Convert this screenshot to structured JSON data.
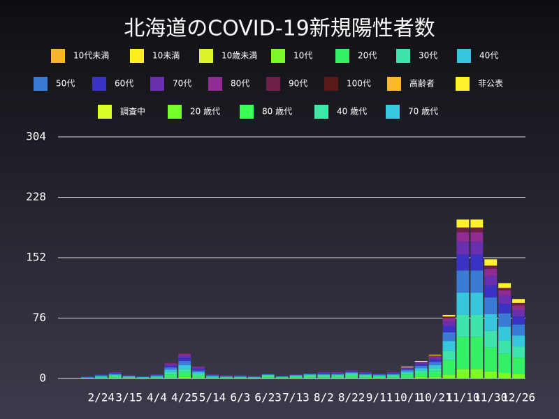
{
  "chart_data": {
    "type": "bar",
    "stacked": true,
    "title": "北海道のCOVID-19新規陽性者数",
    "categories": [
      null,
      null,
      "2/24",
      null,
      "3/15",
      null,
      "4/4",
      null,
      "4/25",
      null,
      "5/14",
      null,
      "6/3",
      null,
      "6/23",
      null,
      "7/13",
      null,
      "8/2",
      null,
      "8/22",
      null,
      "9/11",
      null,
      "10/1",
      null,
      "10/21",
      null,
      "11/10",
      null,
      "11/30",
      null,
      "12/26"
    ],
    "ylim": [
      0,
      304
    ],
    "yticks": [
      0,
      76,
      152,
      228,
      304
    ],
    "grid": true,
    "series": [
      {
        "name": "10代未満",
        "color": "#f9b52b",
        "values": [
          0,
          0,
          0,
          0,
          0,
          0,
          0,
          0,
          0,
          0,
          0,
          0,
          0,
          0,
          0,
          0,
          0,
          0,
          0,
          0,
          0,
          0,
          0,
          0,
          0,
          0,
          0,
          0,
          0,
          0,
          0,
          0,
          0
        ]
      },
      {
        "name": "10未満",
        "color": "#ffee22",
        "values": [
          0,
          0,
          0,
          0,
          0,
          0,
          0,
          0,
          0,
          0,
          0,
          0,
          0,
          0,
          0,
          0,
          0,
          0,
          0,
          0,
          0,
          0,
          0,
          0,
          0,
          0,
          0,
          0,
          0,
          0,
          0,
          0,
          0
        ]
      },
      {
        "name": "10歳未満",
        "color": "#dcf52a",
        "values": [
          0,
          0,
          0,
          0,
          0,
          0,
          0,
          0,
          0,
          0,
          0,
          0,
          0,
          0,
          0,
          0,
          0,
          0,
          0,
          0,
          0,
          0,
          0,
          0,
          0,
          0,
          0,
          0,
          0,
          0,
          0,
          0,
          0
        ]
      },
      {
        "name": "10代",
        "color": "#7cf92a",
        "values": [
          0,
          0,
          0,
          1,
          0,
          0,
          0,
          1,
          2,
          1,
          0,
          0,
          0,
          0,
          1,
          0,
          0,
          1,
          1,
          1,
          1,
          1,
          0,
          1,
          1,
          2,
          2,
          5,
          12,
          12,
          9,
          7,
          6
        ]
      },
      {
        "name": "20代",
        "color": "#35f065",
        "values": [
          0,
          1,
          1,
          2,
          1,
          1,
          1,
          4,
          6,
          3,
          1,
          1,
          1,
          1,
          2,
          1,
          2,
          2,
          2,
          2,
          3,
          2,
          2,
          2,
          4,
          5,
          7,
          18,
          40,
          40,
          30,
          24,
          20
        ]
      },
      {
        "name": "30代",
        "color": "#3de3a8",
        "values": [
          0,
          0,
          1,
          1,
          1,
          0,
          1,
          3,
          4,
          2,
          1,
          1,
          1,
          0,
          1,
          1,
          1,
          1,
          1,
          1,
          2,
          1,
          1,
          1,
          2,
          3,
          4,
          12,
          28,
          28,
          21,
          17,
          14
        ]
      },
      {
        "name": "40代",
        "color": "#37c7dc",
        "values": [
          0,
          0,
          1,
          1,
          1,
          1,
          1,
          3,
          5,
          2,
          1,
          0,
          0,
          1,
          1,
          0,
          1,
          1,
          1,
          1,
          1,
          1,
          1,
          1,
          2,
          3,
          4,
          12,
          28,
          28,
          21,
          17,
          14
        ]
      },
      {
        "name": "50代",
        "color": "#3a7bd6",
        "values": [
          0,
          1,
          1,
          1,
          0,
          0,
          1,
          3,
          5,
          2,
          1,
          1,
          1,
          0,
          0,
          1,
          0,
          1,
          1,
          1,
          1,
          1,
          1,
          1,
          2,
          3,
          4,
          11,
          28,
          28,
          21,
          17,
          14
        ]
      },
      {
        "name": "60代",
        "color": "#3a32c2",
        "values": [
          0,
          0,
          1,
          1,
          0,
          1,
          0,
          2,
          4,
          2,
          0,
          0,
          0,
          0,
          1,
          0,
          0,
          0,
          1,
          1,
          1,
          1,
          0,
          1,
          1,
          2,
          3,
          8,
          20,
          20,
          15,
          12,
          10
        ]
      },
      {
        "name": "70代",
        "color": "#6a2fae",
        "values": [
          0,
          0,
          0,
          1,
          1,
          0,
          1,
          2,
          3,
          2,
          1,
          0,
          1,
          1,
          0,
          0,
          1,
          0,
          1,
          0,
          1,
          1,
          1,
          1,
          1,
          2,
          2,
          6,
          16,
          16,
          12,
          10,
          8
        ]
      },
      {
        "name": "80代",
        "color": "#8e2c94",
        "values": [
          0,
          0,
          0,
          0,
          0,
          0,
          0,
          1,
          2,
          1,
          0,
          1,
          0,
          0,
          0,
          0,
          0,
          0,
          0,
          1,
          0,
          0,
          0,
          0,
          1,
          1,
          2,
          4,
          12,
          12,
          9,
          7,
          6
        ]
      },
      {
        "name": "90代",
        "color": "#6e1f48",
        "values": [
          0,
          0,
          0,
          0,
          0,
          0,
          0,
          1,
          1,
          0,
          0,
          0,
          0,
          0,
          0,
          0,
          0,
          0,
          0,
          0,
          0,
          0,
          0,
          0,
          0,
          0,
          1,
          2,
          6,
          6,
          4,
          3,
          3
        ]
      },
      {
        "name": "100代",
        "color": "#5a1a1a",
        "values": [
          0,
          0,
          0,
          0,
          0,
          0,
          0,
          0,
          0,
          0,
          0,
          0,
          0,
          0,
          0,
          0,
          0,
          0,
          0,
          0,
          0,
          0,
          0,
          0,
          0,
          0,
          0,
          0,
          0,
          0,
          0,
          0,
          0
        ]
      },
      {
        "name": "高齢者",
        "color": "#fbb828",
        "values": [
          0,
          0,
          0,
          0,
          0,
          0,
          0,
          0,
          0,
          0,
          0,
          0,
          0,
          0,
          0,
          0,
          0,
          0,
          0,
          0,
          0,
          0,
          0,
          0,
          0,
          0,
          0,
          0,
          0,
          0,
          0,
          0,
          0
        ]
      },
      {
        "name": "非公表",
        "color": "#fff22a",
        "values": [
          0,
          0,
          0,
          0,
          0,
          0,
          0,
          0,
          0,
          0,
          0,
          0,
          0,
          0,
          0,
          0,
          0,
          0,
          0,
          0,
          0,
          0,
          0,
          0,
          1,
          1,
          1,
          2,
          10,
          10,
          8,
          6,
          5
        ]
      },
      {
        "name": "調査中",
        "color": "#d8ff2a",
        "values": [
          0,
          0,
          0,
          0,
          0,
          0,
          0,
          0,
          0,
          0,
          0,
          0,
          0,
          0,
          0,
          0,
          0,
          0,
          0,
          0,
          0,
          0,
          0,
          0,
          0,
          0,
          0,
          0,
          0,
          0,
          0,
          0,
          0
        ]
      },
      {
        "name": "20 歳代",
        "color": "#76ff2a",
        "values": [
          0,
          0,
          0,
          0,
          0,
          0,
          0,
          0,
          0,
          0,
          0,
          0,
          0,
          0,
          0,
          0,
          0,
          0,
          0,
          0,
          0,
          0,
          0,
          0,
          0,
          0,
          0,
          0,
          0,
          0,
          0,
          0,
          0
        ]
      },
      {
        "name": "80 歳代",
        "color": "#3aff55",
        "values": [
          0,
          0,
          0,
          0,
          0,
          0,
          0,
          0,
          0,
          0,
          0,
          0,
          0,
          0,
          0,
          0,
          0,
          0,
          0,
          0,
          0,
          0,
          0,
          0,
          0,
          0,
          0,
          0,
          0,
          0,
          0,
          0,
          0
        ]
      },
      {
        "name": "40 歳代",
        "color": "#3ee8a5",
        "values": [
          0,
          0,
          0,
          0,
          0,
          0,
          0,
          0,
          0,
          0,
          0,
          0,
          0,
          0,
          0,
          0,
          0,
          0,
          0,
          0,
          0,
          0,
          0,
          0,
          0,
          0,
          0,
          0,
          0,
          0,
          0,
          0,
          0
        ]
      },
      {
        "name": "70 歳代",
        "color": "#38c8df",
        "values": [
          0,
          0,
          0,
          0,
          0,
          0,
          0,
          0,
          0,
          0,
          0,
          0,
          0,
          0,
          0,
          0,
          0,
          0,
          0,
          0,
          0,
          0,
          0,
          0,
          0,
          0,
          0,
          0,
          0,
          0,
          0,
          0,
          0
        ]
      }
    ]
  }
}
